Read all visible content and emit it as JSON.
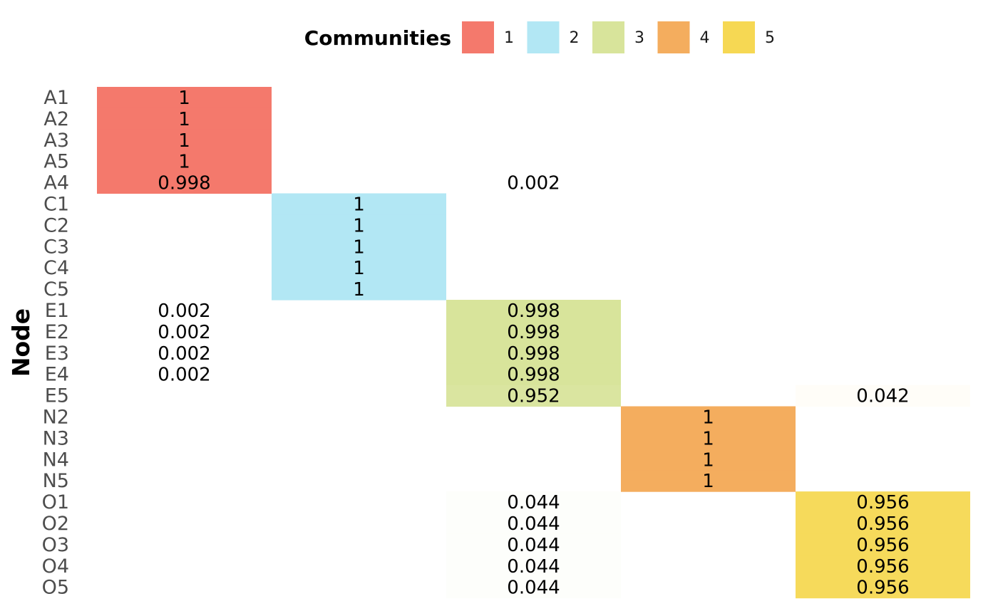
{
  "chart_data": {
    "type": "heatmap",
    "ylabel": "Node",
    "legend": {
      "title": "Communities",
      "position": "top",
      "entries": [
        {
          "label": "1",
          "color": "#F4796C"
        },
        {
          "label": "2",
          "color": "#B2E7F4"
        },
        {
          "label": "3",
          "color": "#D8E49B"
        },
        {
          "label": "4",
          "color": "#F4AD5E"
        },
        {
          "label": "5",
          "color": "#F6D853"
        }
      ]
    },
    "communities": [
      "1",
      "2",
      "3",
      "4",
      "5"
    ],
    "nodes": [
      "A1",
      "A2",
      "A3",
      "A5",
      "A4",
      "C1",
      "C2",
      "C3",
      "C4",
      "C5",
      "E1",
      "E2",
      "E3",
      "E4",
      "E5",
      "N2",
      "N3",
      "N4",
      "N5",
      "O1",
      "O2",
      "O3",
      "O4",
      "O5"
    ],
    "values": [
      [
        "1",
        null,
        null,
        null,
        null
      ],
      [
        "1",
        null,
        null,
        null,
        null
      ],
      [
        "1",
        null,
        null,
        null,
        null
      ],
      [
        "1",
        null,
        null,
        null,
        null
      ],
      [
        "0.998",
        null,
        "0.002",
        null,
        null
      ],
      [
        null,
        "1",
        null,
        null,
        null
      ],
      [
        null,
        "1",
        null,
        null,
        null
      ],
      [
        null,
        "1",
        null,
        null,
        null
      ],
      [
        null,
        "1",
        null,
        null,
        null
      ],
      [
        null,
        "1",
        null,
        null,
        null
      ],
      [
        "0.002",
        null,
        "0.998",
        null,
        null
      ],
      [
        "0.002",
        null,
        "0.998",
        null,
        null
      ],
      [
        "0.002",
        null,
        "0.998",
        null,
        null
      ],
      [
        "0.002",
        null,
        "0.998",
        null,
        null
      ],
      [
        null,
        null,
        "0.952",
        null,
        "0.042"
      ],
      [
        null,
        null,
        null,
        "1",
        null
      ],
      [
        null,
        null,
        null,
        "1",
        null
      ],
      [
        null,
        null,
        null,
        "1",
        null
      ],
      [
        null,
        null,
        null,
        "1",
        null
      ],
      [
        null,
        null,
        "0.044",
        null,
        "0.956"
      ],
      [
        null,
        null,
        "0.044",
        null,
        "0.956"
      ],
      [
        null,
        null,
        "0.044",
        null,
        "0.956"
      ],
      [
        null,
        null,
        "0.044",
        null,
        "0.956"
      ],
      [
        null,
        null,
        "0.044",
        null,
        "0.956"
      ]
    ],
    "grid": false
  }
}
